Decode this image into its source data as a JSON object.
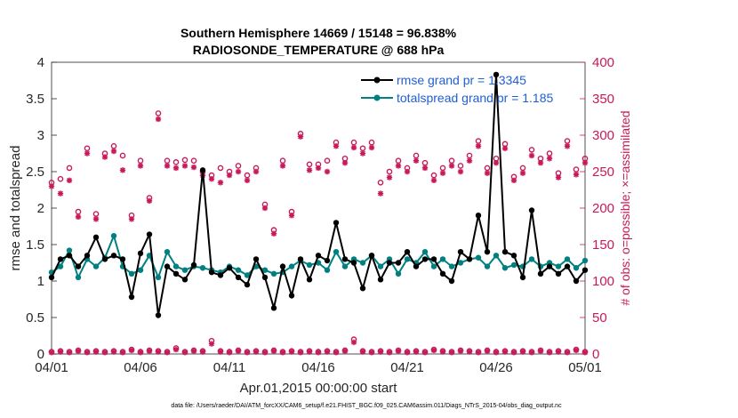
{
  "title_line1": "Southern Hemisphere 14669 / 15148 = 96.838%",
  "title_line2": "RADIOSONDE_TEMPERATURE @ 688 hPa",
  "xlabel": "Apr.01,2015 00:00:00 start",
  "ylabel_left": "rmse and totalspread",
  "ylabel_right": "# of obs: o=possible; ×=assimilated",
  "footnote": "data file: /Users/raeder/DAI/ATM_forcXX/CAM6_setup/f.e21.FHIST_BGC.f09_025.CAM6assim.011/Diags_NTrS_2015-04/obs_diag_output.nc",
  "colors": {
    "rmse": "#000000",
    "spread": "#008080",
    "obs": "#c8195a",
    "legend_text": "#1f5fd6",
    "right_axis": "#c8195a"
  },
  "chart_data": {
    "type": "line",
    "x_unit": "days since Apr.01,2015 00:00",
    "xlim": [
      0,
      30
    ],
    "x_ticks": [
      0,
      5,
      10,
      15,
      20,
      25,
      30
    ],
    "x_tick_labels": [
      "04/01",
      "04/06",
      "04/11",
      "04/16",
      "04/21",
      "04/26",
      "05/01"
    ],
    "ylim_left": [
      0,
      4
    ],
    "y_ticks_left": [
      "0",
      "0.5",
      "1",
      "1.5",
      "2",
      "2.5",
      "3",
      "3.5",
      "4"
    ],
    "ylim_right": [
      0,
      400
    ],
    "y_ticks_right": [
      "0",
      "50",
      "100",
      "150",
      "200",
      "250",
      "300",
      "350",
      "400"
    ],
    "x": [
      0,
      0.5,
      1,
      1.5,
      2,
      2.5,
      3,
      3.5,
      4,
      4.5,
      5,
      5.5,
      6,
      6.5,
      7,
      7.5,
      8,
      8.5,
      9,
      9.5,
      10,
      10.5,
      11,
      11.5,
      12,
      12.5,
      13,
      13.5,
      14,
      14.5,
      15,
      15.5,
      16,
      16.5,
      17,
      17.5,
      18,
      18.5,
      19,
      19.5,
      20,
      20.5,
      21,
      21.5,
      22,
      22.5,
      23,
      23.5,
      24,
      24.5,
      25,
      25.5,
      26,
      26.5,
      27,
      27.5,
      28,
      28.5,
      29,
      29.5,
      30
    ],
    "series": [
      {
        "name": "rmse grand pr = 1.3345",
        "axis": "left",
        "values": [
          1.05,
          1.3,
          1.35,
          1.2,
          1.35,
          1.6,
          1.3,
          1.35,
          1.3,
          0.78,
          1.38,
          1.64,
          0.53,
          1.2,
          1.1,
          1.02,
          1.22,
          2.52,
          1.12,
          1.08,
          1.18,
          1.05,
          0.95,
          1.3,
          1.05,
          0.63,
          1.2,
          0.8,
          1.3,
          1.02,
          1.35,
          1.28,
          1.8,
          1.3,
          1.25,
          0.9,
          1.35,
          1.02,
          1.25,
          1.25,
          1.4,
          1.2,
          1.3,
          1.3,
          1.1,
          1.0,
          1.4,
          1.3,
          1.9,
          1.4,
          3.83,
          1.4,
          1.35,
          1.05,
          1.97,
          1.1,
          1.2,
          1.1,
          1.2,
          1.0,
          1.15
        ]
      },
      {
        "name": "totalspread grand pr = 1.185",
        "axis": "left",
        "values": [
          1.12,
          1.2,
          1.42,
          1.05,
          1.3,
          1.2,
          1.32,
          1.62,
          1.2,
          1.1,
          1.15,
          1.35,
          1.05,
          1.4,
          1.2,
          1.15,
          1.2,
          1.18,
          1.15,
          1.12,
          1.2,
          1.15,
          1.08,
          1.2,
          1.15,
          1.1,
          1.12,
          1.2,
          1.28,
          1.22,
          1.25,
          1.15,
          1.4,
          1.2,
          1.3,
          1.25,
          1.35,
          1.2,
          1.3,
          1.1,
          1.3,
          1.25,
          1.4,
          1.2,
          1.3,
          1.2,
          1.25,
          1.3,
          1.32,
          1.2,
          1.35,
          1.18,
          1.22,
          1.2,
          1.3,
          1.2,
          1.25,
          1.2,
          1.3,
          1.18,
          1.28
        ]
      },
      {
        "name": "# obs possible",
        "axis": "right",
        "marker": "o",
        "values": [
          235,
          240,
          255,
          195,
          282,
          192,
          275,
          285,
          272,
          190,
          265,
          214,
          330,
          265,
          263,
          266,
          265,
          250,
          245,
          255,
          250,
          258,
          245,
          255,
          205,
          170,
          265,
          195,
          302,
          260,
          260,
          265,
          290,
          268,
          290,
          282,
          290,
          235,
          250,
          265,
          255,
          272,
          262,
          245,
          255,
          265,
          258,
          272,
          292,
          255,
          268,
          288,
          243,
          255,
          280,
          268,
          275,
          248,
          292,
          253,
          268
        ]
      },
      {
        "name": "# obs assimilated",
        "axis": "right",
        "marker": "x",
        "values": [
          230,
          220,
          238,
          188,
          275,
          185,
          270,
          278,
          252,
          185,
          258,
          210,
          322,
          258,
          255,
          258,
          256,
          245,
          240,
          235,
          245,
          250,
          238,
          250,
          200,
          165,
          258,
          190,
          298,
          252,
          255,
          250,
          285,
          262,
          283,
          275,
          283,
          220,
          242,
          258,
          250,
          265,
          255,
          238,
          248,
          258,
          250,
          265,
          285,
          248,
          262,
          282,
          238,
          248,
          272,
          262,
          268,
          242,
          285,
          246,
          262
        ]
      },
      {
        "name": "# obs possible (lower)",
        "axis": "right",
        "marker": "o",
        "values": [
          3,
          4,
          3,
          5,
          3,
          4,
          3,
          4,
          3,
          6,
          3,
          5,
          4,
          3,
          8,
          3,
          5,
          4,
          18,
          4,
          3,
          5,
          3,
          4,
          3,
          5,
          3,
          4,
          3,
          4,
          3,
          4,
          3,
          5,
          20,
          4,
          3,
          4,
          3,
          5,
          3,
          4,
          3,
          6,
          4,
          3,
          5,
          4,
          3,
          5,
          3,
          4,
          3,
          4,
          3,
          5,
          3,
          4,
          3,
          6,
          3
        ]
      },
      {
        "name": "# obs assimilated (lower)",
        "axis": "right",
        "marker": "x",
        "values": [
          2,
          3,
          2,
          4,
          2,
          3,
          2,
          3,
          2,
          5,
          2,
          4,
          3,
          2,
          6,
          2,
          4,
          3,
          14,
          3,
          2,
          4,
          2,
          3,
          2,
          4,
          2,
          3,
          2,
          3,
          2,
          3,
          2,
          4,
          16,
          3,
          2,
          3,
          2,
          4,
          2,
          3,
          2,
          5,
          3,
          2,
          4,
          3,
          2,
          4,
          2,
          3,
          2,
          3,
          2,
          4,
          2,
          3,
          2,
          5,
          2
        ]
      }
    ],
    "legend": [
      "rmse grand pr = 1.3345",
      "totalspread grand pr = 1.185"
    ],
    "legend_position": "top-right",
    "grid": false
  }
}
